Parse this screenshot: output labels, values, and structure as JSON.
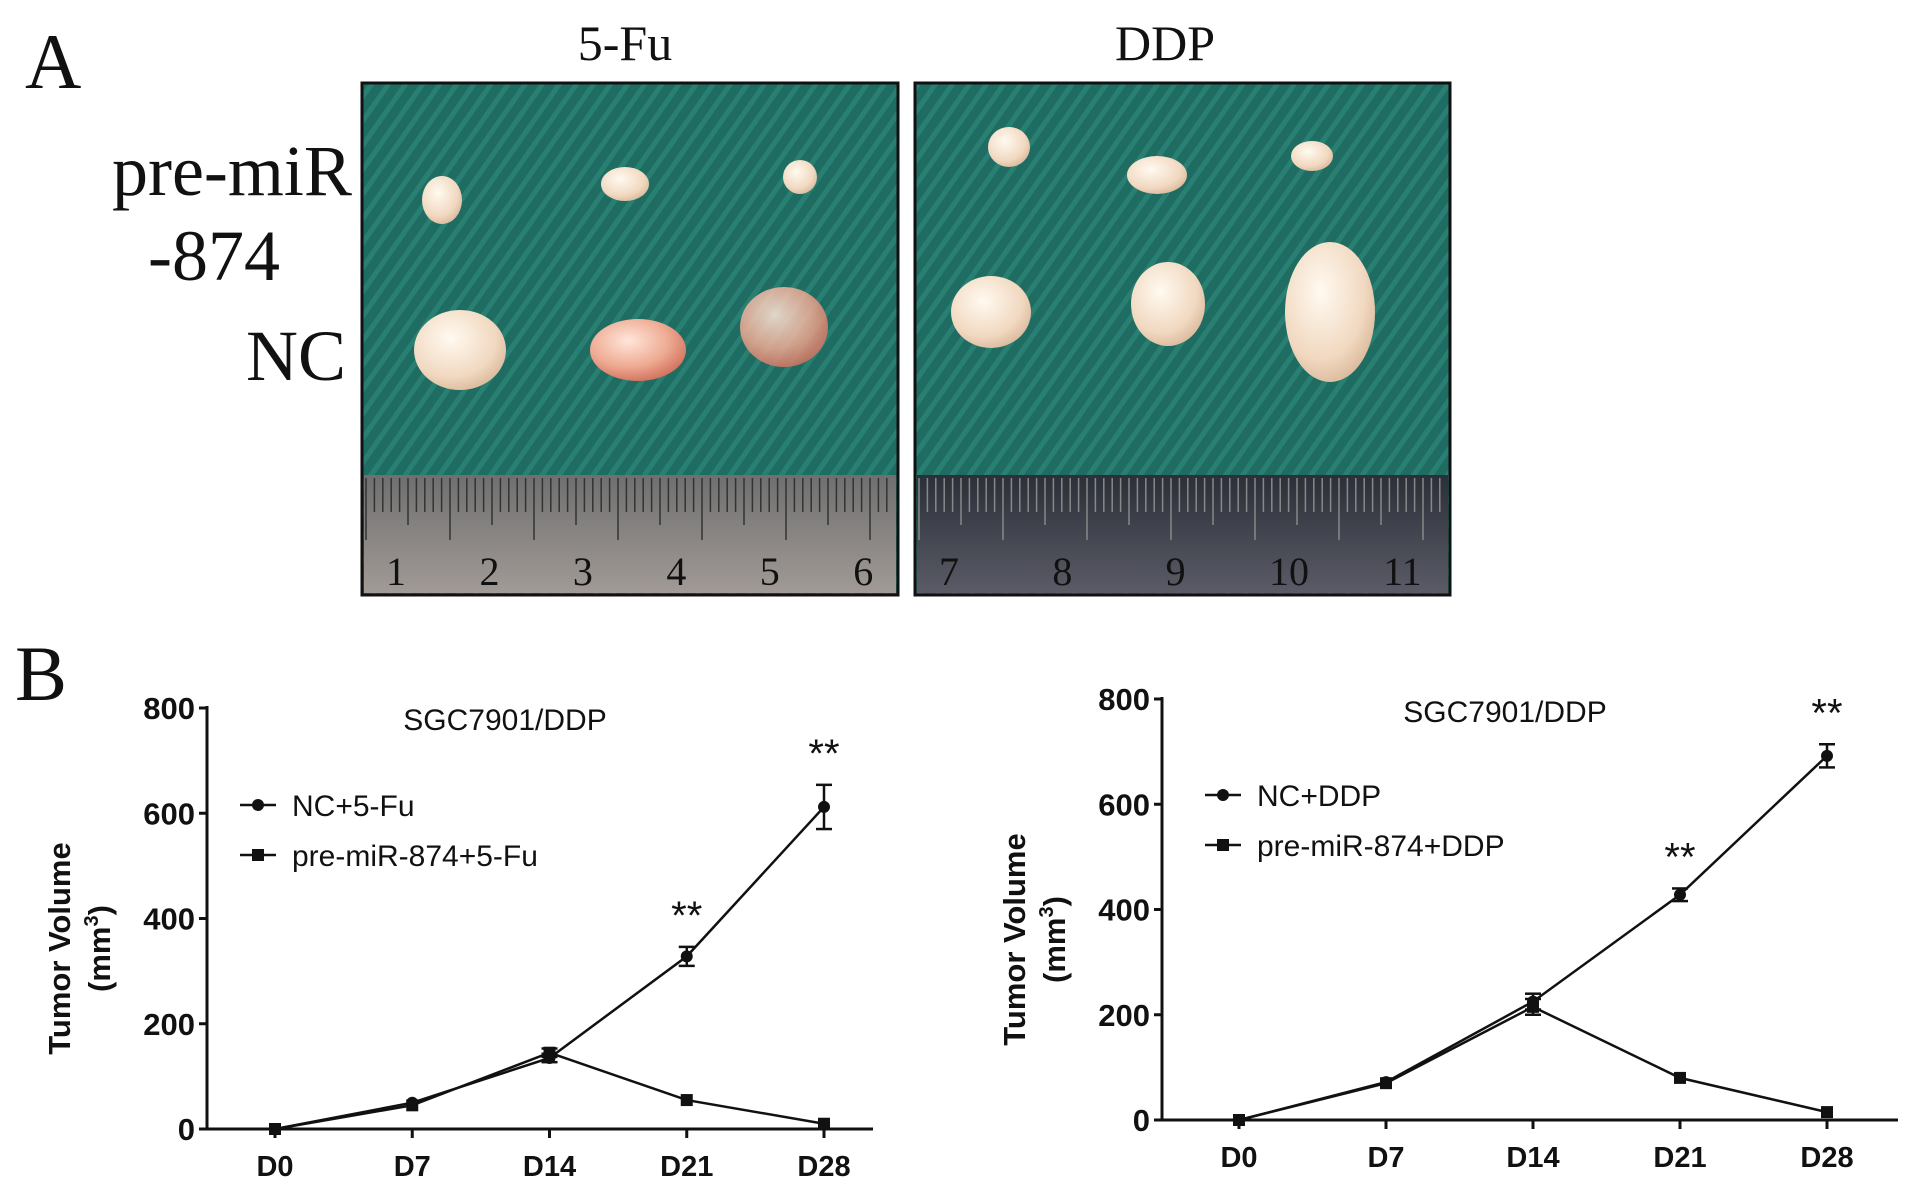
{
  "panel_a": {
    "label": "A",
    "columns": [
      "5-Fu",
      "DDP"
    ],
    "rows": [
      "pre-miR",
      "-874",
      "NC"
    ],
    "ruler_numbers_left": [
      "1",
      "2",
      "3",
      "4",
      "5",
      "6"
    ],
    "ruler_numbers_right": [
      "7",
      "8",
      "9",
      "10",
      "11"
    ]
  },
  "panel_b": {
    "label": "B"
  },
  "chart_data": [
    {
      "type": "line",
      "title": "SGC7901/DDP",
      "xlabel": "",
      "ylabel": "Tumor Volume",
      "ylabel_unit": "(mm",
      "ylabel_sup": "3",
      "ylabel_close": ")",
      "categories": [
        "D0",
        "D7",
        "D14",
        "D21",
        "D28"
      ],
      "ylim": [
        0,
        800
      ],
      "yticks": [
        "0",
        "200",
        "400",
        "600",
        "800"
      ],
      "legend_position": "top-left",
      "series": [
        {
          "name": "NC+5-Fu",
          "marker": "circle",
          "values": [
            0,
            50,
            135,
            328,
            612
          ],
          "errors": [
            3,
            6,
            8,
            18,
            42
          ]
        },
        {
          "name": "pre-miR-874+5-Fu",
          "marker": "square",
          "values": [
            0,
            45,
            145,
            55,
            10
          ],
          "errors": [
            2,
            5,
            8,
            5,
            4
          ]
        }
      ],
      "annotations": [
        {
          "x": "D21",
          "text": "**"
        },
        {
          "x": "D28",
          "text": "**"
        }
      ]
    },
    {
      "type": "line",
      "title": "SGC7901/DDP",
      "xlabel": "",
      "ylabel": "Tumor Volume",
      "ylabel_unit": "(mm",
      "ylabel_sup": "3",
      "ylabel_close": ")",
      "categories": [
        "D0",
        "D7",
        "D14",
        "D21",
        "D28"
      ],
      "ylim": [
        0,
        800
      ],
      "yticks": [
        "0",
        "200",
        "400",
        "600",
        "800"
      ],
      "legend_position": "top-left",
      "series": [
        {
          "name": "NC+DDP",
          "marker": "circle",
          "values": [
            0,
            72,
            225,
            428,
            692
          ],
          "errors": [
            3,
            5,
            15,
            12,
            22
          ]
        },
        {
          "name": "pre-miR-874+DDP",
          "marker": "square",
          "values": [
            0,
            70,
            215,
            80,
            15
          ],
          "errors": [
            2,
            5,
            15,
            5,
            5
          ]
        }
      ],
      "annotations": [
        {
          "x": "D21",
          "text": "**"
        },
        {
          "x": "D28",
          "text": "**"
        }
      ]
    }
  ]
}
